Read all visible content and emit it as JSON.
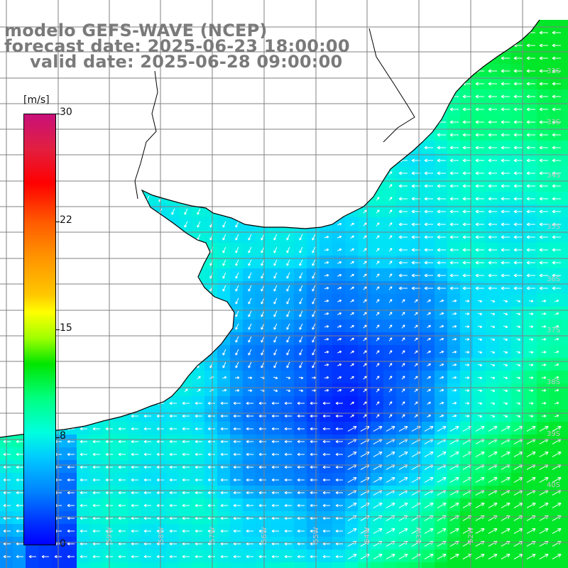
{
  "header": {
    "model": "modelo GEFS-WAVE (NCEP)",
    "forecast": "forecast date: 2025-06-23 18:00:00",
    "valid": "valid date: 2025-06-28 09:00:00"
  },
  "colorbar": {
    "unit": "[m/s]",
    "ticks": [
      "30",
      "22",
      "15",
      "8",
      "0"
    ],
    "colors": [
      "#c8107a",
      "#ff0000",
      "#ff8c00",
      "#ffff00",
      "#00e600",
      "#00ffe0",
      "#0080ff",
      "#0000ff"
    ]
  },
  "lat_labels": [
    "32S",
    "33S",
    "34S",
    "35S",
    "36S",
    "37S",
    "38S",
    "39S",
    "40S"
  ],
  "lon_labels": [
    "59W",
    "58W",
    "57W",
    "56W",
    "55W",
    "54W",
    "53W",
    "52W"
  ],
  "map_colors": {
    "land": "#ffffff",
    "coast": "#000000",
    "grid": "#808080",
    "arrows": "#ffffff"
  }
}
